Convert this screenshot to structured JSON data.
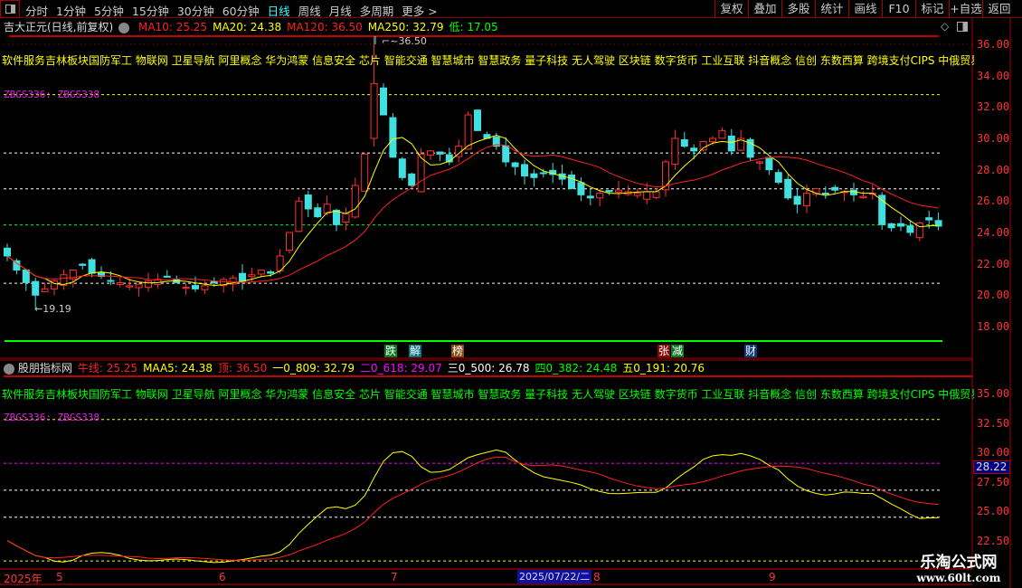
{
  "toolbar": {
    "periods": [
      "分时",
      "1分钟",
      "5分钟",
      "15分钟",
      "30分钟",
      "60分钟",
      "日线",
      "周线",
      "月线",
      "多周期",
      "更多 >"
    ],
    "active": "日线",
    "buttons": [
      "复权",
      "叠加",
      "多股",
      "统计",
      "画线",
      "F10",
      "标记",
      "+自选",
      "返回"
    ]
  },
  "main": {
    "title": "吉大正元(日线,前复权)",
    "indicators": [
      {
        "label": "MA10: 25.25",
        "color": "#ff2020"
      },
      {
        "label": "MA20: 24.38",
        "color": "#ffff00"
      },
      {
        "label": "MA120: 36.50",
        "color": "#ff2020"
      },
      {
        "label": "MA250: 32.79",
        "color": "#ffff00"
      },
      {
        "label": "低: 17.05",
        "color": "#00ff00"
      }
    ],
    "sectors": "软件服务吉林板块国防军工 物联网 卫星导航 阿里概念 华为鸿蒙 信息安全 芯片 智能交通 智慧城市 智慧政务 量子科技 无人驾驶 区块链 数字货币 工业互联 抖音概念 信创 东数西算 跨境支付CIPS 中俄贸易",
    "formula_label": "ZBGS336: ZBGS338",
    "high_label": "36.50",
    "low_label": "19.19",
    "axis": [
      "36.00",
      "34.00",
      "32.00",
      "30.00",
      "28.00",
      "26.00",
      "24.00",
      "22.00",
      "20.00",
      "18.00"
    ],
    "markers": [
      {
        "text": "跌",
        "bg": "#0a7a20"
      },
      {
        "text": "解",
        "bg": "#087080"
      },
      {
        "text": "榜",
        "bg": "#8a4a10"
      },
      {
        "text": "张",
        "bg": "#8a0808"
      },
      {
        "text": "减",
        "bg": "#0a7a20"
      },
      {
        "text": "财",
        "bg": "#0a3a7a"
      }
    ]
  },
  "sub": {
    "title": "股朋指标网",
    "indicators": [
      {
        "label": "牛线: 25.25",
        "color": "#ff2020"
      },
      {
        "label": "MAA5: 24.38",
        "color": "#ffff00"
      },
      {
        "label": "顶: 36.50",
        "color": "#ff2020"
      },
      {
        "label": "一0_809: 32.79",
        "color": "#ffff00"
      },
      {
        "label": "二0_618: 29.07",
        "color": "#ff00ff"
      },
      {
        "label": "三0_500: 26.78",
        "color": "#ffffff"
      },
      {
        "label": "四0_382: 24.48",
        "color": "#00ff00"
      },
      {
        "label": "五0_191: 20.76",
        "color": "#ffff00"
      }
    ],
    "sectors": "软件服务吉林板块国防军工 物联网 卫星导航 阿里概念 华为鸿蒙 信息安全 芯片 智能交通 智慧城市 智慧政务 量子科技 无人驾驶 区块链 数字货币 工业互联 抖音概念 信创 东数西算 跨境支付CIPS 中俄贸易",
    "formula_label": "ZBGS336: ZBGS338",
    "axis": [
      "35.00",
      "32.50",
      "30.00",
      "27.50",
      "25.00",
      "22.50"
    ],
    "cursor_value": "28.22"
  },
  "date_axis": {
    "labels": [
      "2025年",
      "5",
      "6",
      "7",
      "8",
      "9"
    ],
    "cursor_date": "2025/07/22/二"
  },
  "watermark": {
    "name": "乐淘公式网",
    "url": "www.60lt.com"
  },
  "chart_data": {
    "type": "candlestick",
    "levels": {
      "top": 36.5,
      "l809": 32.79,
      "l618": 29.07,
      "l500": 26.78,
      "l382": 24.48,
      "l191": 20.76
    },
    "closes": [
      22.5,
      21.6,
      20.8,
      20.0,
      20.4,
      20.9,
      21.3,
      21.6,
      21.9,
      21.4,
      21.2,
      20.9,
      20.8,
      20.6,
      20.7,
      20.9,
      21.0,
      21.2,
      20.8,
      20.5,
      20.4,
      20.6,
      20.8,
      21.0,
      21.1,
      20.9,
      21.3,
      21.6,
      21.4,
      22.5,
      24.0,
      26.0,
      25.5,
      25.0,
      25.8,
      24.5,
      25.2,
      27.0,
      29.0,
      33.5,
      31.5,
      28.8,
      27.5,
      27.0,
      29.0,
      29.2,
      29.0,
      28.5,
      29.5,
      31.5,
      30.5,
      30.0,
      29.5,
      28.5,
      28.2,
      27.6,
      27.5,
      27.8,
      27.7,
      27.4,
      26.8,
      26.4,
      26.2,
      26.5,
      26.6,
      26.7,
      26.6,
      26.5,
      26.6,
      26.6,
      28.5,
      30.0,
      29.5,
      29.2,
      29.8,
      30.0,
      30.5,
      29.2,
      30.0,
      28.8,
      28.5,
      28.0,
      27.2,
      26.2,
      25.8,
      26.5,
      26.8,
      26.5,
      26.7,
      26.6,
      26.4,
      26.3,
      26.5,
      24.5,
      24.3,
      24.4,
      24.0,
      24.6,
      24.8,
      24.4
    ],
    "colors": {
      "up": "#ff3030",
      "down": "#40e0e0",
      "ma_short": "#ffff00",
      "ma_long": "#ff2020"
    }
  }
}
